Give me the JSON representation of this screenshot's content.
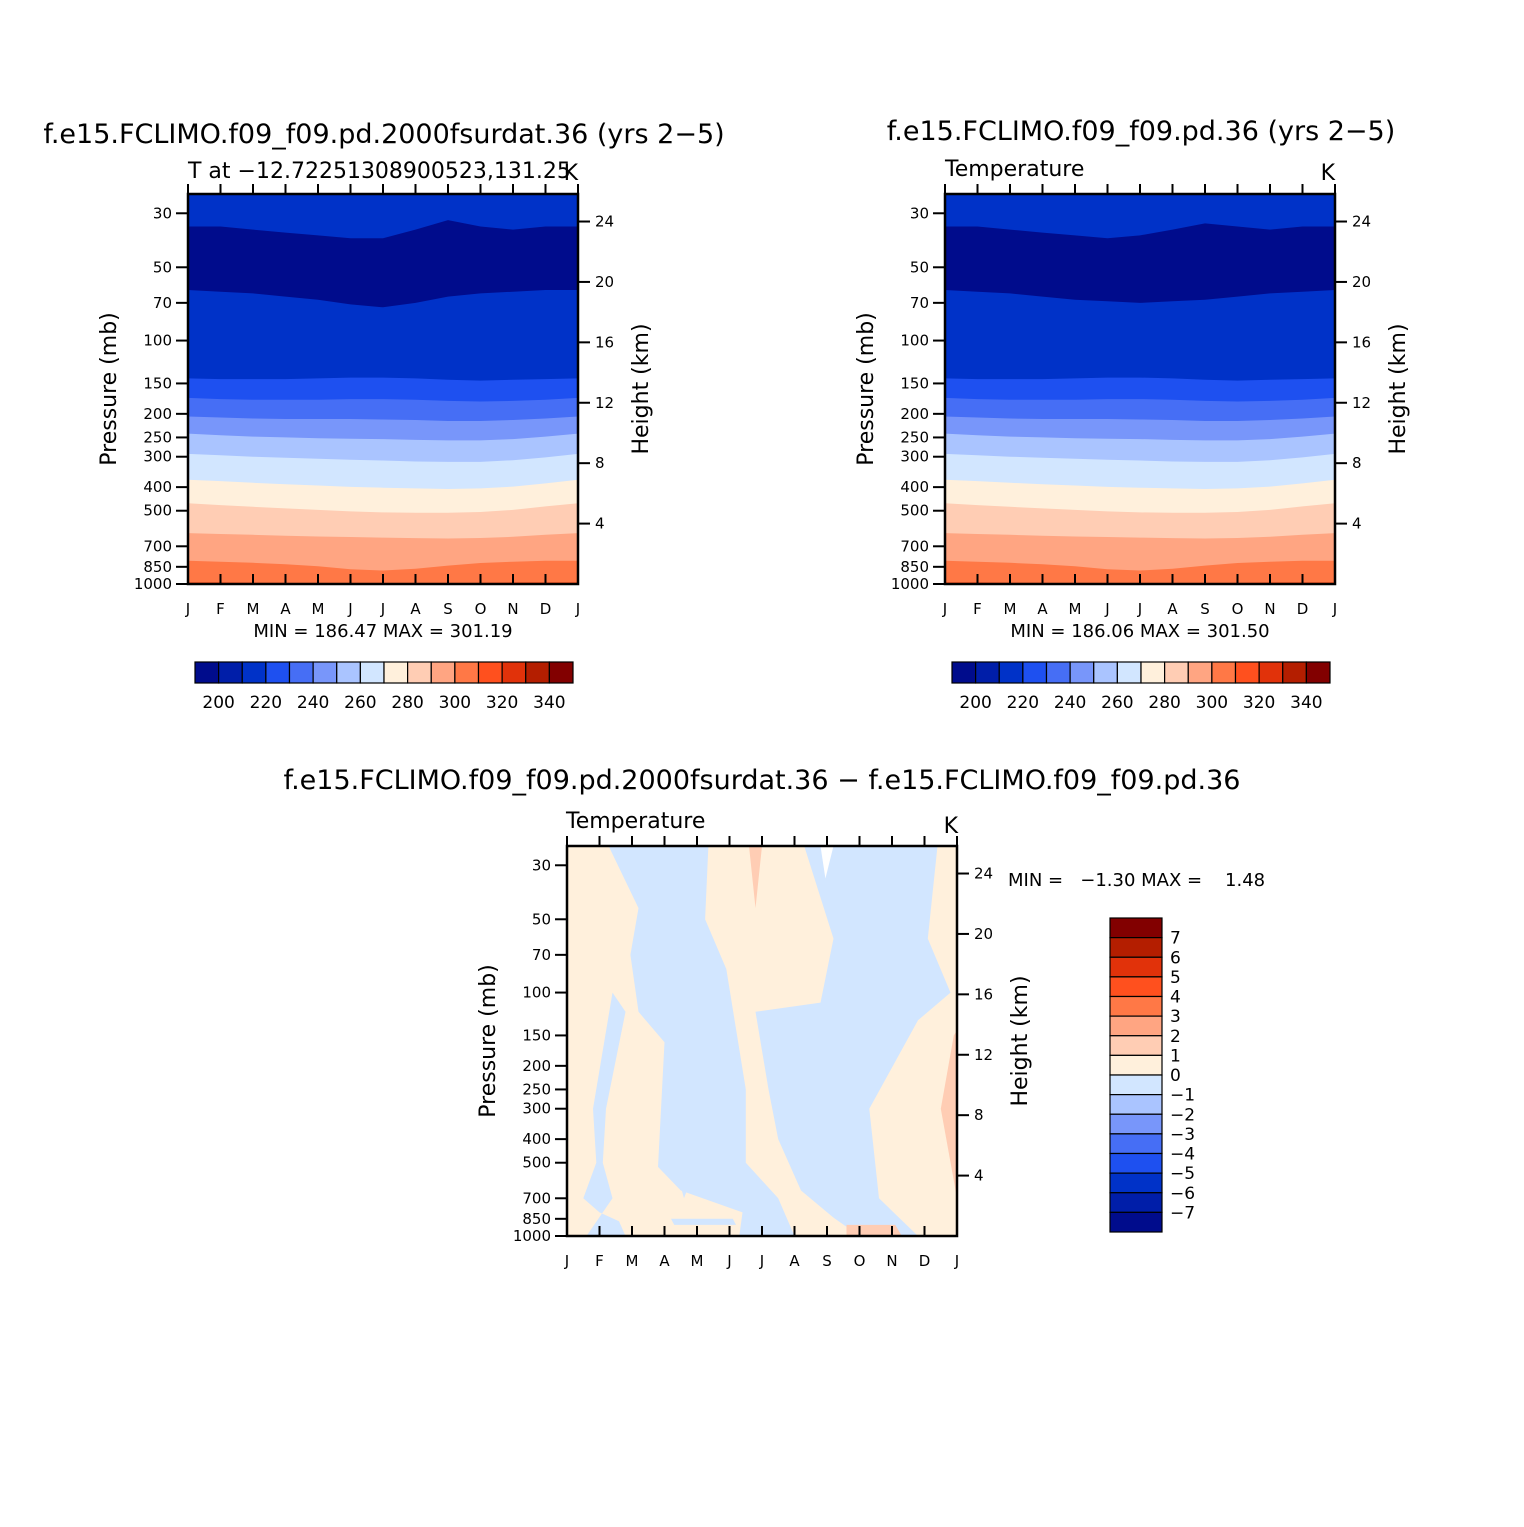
{
  "colors": {
    "temperature_scale": [
      "#000c8c",
      "#001ea9",
      "#0032c8",
      "#1e50f0",
      "#466ef5",
      "#7896fa",
      "#aac4ff",
      "#d2e6ff",
      "#fff0dc",
      "#ffcdb4",
      "#ffa582",
      "#ff7846",
      "#ff501e",
      "#e1320a",
      "#b41e00",
      "#820000"
    ],
    "difference_scale": [
      "#000c8c",
      "#001ea9",
      "#0032c8",
      "#1e50f0",
      "#466ef5",
      "#7896fa",
      "#aac4ff",
      "#d2e6ff",
      "#fff0dc",
      "#ffcdb4",
      "#ffa582",
      "#ff7846",
      "#ff501e",
      "#e1320a",
      "#b41e00",
      "#820000"
    ]
  },
  "chart_data": [
    {
      "type": "heatmap",
      "title": "f.e15.FCLIMO.f09_f09.pd.2000fsurdat.36 (yrs 2−5)",
      "subtitle_left": "T at −12.72251308900523,131.25",
      "subtitle_right": "K",
      "ylabel": "Pressure (mb)",
      "ylabel_right": "Height (km)",
      "x_ticks": [
        "J",
        "F",
        "M",
        "A",
        "M",
        "J",
        "J",
        "A",
        "S",
        "O",
        "N",
        "D",
        "J"
      ],
      "y_ticks": [
        "30",
        "50",
        "70",
        "100",
        "150",
        "200",
        "250",
        "300",
        "400",
        "500",
        "700",
        "850",
        "1000"
      ],
      "y2_ticks": [
        "4",
        "8",
        "12",
        "16",
        "20",
        "24"
      ],
      "y_scale": "log",
      "ylim": [
        1000,
        25
      ],
      "stats": "MIN = 186.47 MAX = 301.19",
      "colorbar": {
        "ticks": [
          "200",
          "220",
          "240",
          "260",
          "280",
          "300",
          "320",
          "340"
        ],
        "orientation": "horizontal"
      },
      "layers": [
        {
          "value": 200,
          "p": [
            62,
            63,
            64,
            66,
            68,
            71,
            73,
            70,
            66,
            64,
            63,
            62,
            62
          ]
        },
        {
          "value": 210,
          "p": [
            143,
            144,
            144,
            144,
            143,
            142,
            142,
            143,
            145,
            146,
            145,
            144,
            143
          ]
        },
        {
          "value": 220,
          "p": [
            172,
            174,
            175,
            175,
            175,
            174,
            174,
            175,
            177,
            178,
            177,
            175,
            172
          ]
        },
        {
          "value": 230,
          "p": [
            205,
            207,
            209,
            210,
            210,
            210,
            211,
            212,
            214,
            214,
            212,
            209,
            205
          ]
        },
        {
          "value": 240,
          "p": [
            241,
            245,
            248,
            250,
            252,
            253,
            254,
            256,
            257,
            257,
            254,
            248,
            241
          ]
        },
        {
          "value": 250,
          "p": [
            292,
            296,
            300,
            303,
            306,
            309,
            311,
            314,
            315,
            315,
            310,
            302,
            292
          ]
        },
        {
          "value": 260,
          "p": [
            373,
            378,
            384,
            389,
            394,
            399,
            402,
            405,
            407,
            405,
            398,
            386,
            373
          ]
        },
        {
          "value": 270,
          "p": [
            466,
            474,
            482,
            489,
            496,
            503,
            508,
            510,
            510,
            506,
            496,
            480,
            466
          ]
        },
        {
          "value": 280,
          "p": [
            618,
            623,
            628,
            633,
            638,
            641,
            645,
            648,
            650,
            647,
            640,
            628,
            618
          ]
        },
        {
          "value": 290,
          "p": [
            803,
            810,
            818,
            830,
            845,
            870,
            880,
            865,
            840,
            820,
            810,
            803,
            803
          ]
        },
        {
          "value": 300,
          "p": [
            985,
            985,
            988,
            990,
            995,
            1000,
            1000,
            1000,
            995,
            990,
            985,
            985,
            985
          ]
        }
      ],
      "upper_layers": [
        {
          "value": 190,
          "p": [
            34,
            34,
            35,
            36,
            37,
            38,
            38,
            35,
            32,
            34,
            35,
            34,
            34
          ]
        }
      ]
    },
    {
      "type": "heatmap",
      "title": "f.e15.FCLIMO.f09_f09.pd.36 (yrs 2−5)",
      "subtitle_left": "Temperature",
      "subtitle_right": "K",
      "ylabel": "Pressure (mb)",
      "ylabel_right": "Height (km)",
      "x_ticks": [
        "J",
        "F",
        "M",
        "A",
        "M",
        "J",
        "J",
        "A",
        "S",
        "O",
        "N",
        "D",
        "J"
      ],
      "y_ticks": [
        "30",
        "50",
        "70",
        "100",
        "150",
        "200",
        "250",
        "300",
        "400",
        "500",
        "700",
        "850",
        "1000"
      ],
      "y2_ticks": [
        "4",
        "8",
        "12",
        "16",
        "20",
        "24"
      ],
      "y_scale": "log",
      "ylim": [
        1000,
        25
      ],
      "stats": "MIN = 186.06 MAX = 301.50",
      "colorbar": {
        "ticks": [
          "200",
          "220",
          "240",
          "260",
          "280",
          "300",
          "320",
          "340"
        ],
        "orientation": "horizontal"
      },
      "layers": [
        {
          "value": 200,
          "p": [
            62,
            63,
            64,
            66,
            68,
            69,
            70,
            69,
            68,
            66,
            64,
            63,
            62
          ]
        },
        {
          "value": 210,
          "p": [
            143,
            144,
            144,
            144,
            143,
            142,
            142,
            143,
            145,
            146,
            145,
            144,
            143
          ]
        },
        {
          "value": 220,
          "p": [
            172,
            174,
            175,
            175,
            175,
            174,
            174,
            175,
            177,
            178,
            177,
            175,
            172
          ]
        },
        {
          "value": 230,
          "p": [
            205,
            207,
            209,
            210,
            210,
            210,
            211,
            212,
            214,
            214,
            212,
            209,
            205
          ]
        },
        {
          "value": 240,
          "p": [
            241,
            245,
            248,
            250,
            252,
            253,
            254,
            256,
            257,
            257,
            254,
            248,
            241
          ]
        },
        {
          "value": 250,
          "p": [
            292,
            296,
            300,
            303,
            306,
            309,
            311,
            314,
            315,
            315,
            310,
            302,
            292
          ]
        },
        {
          "value": 260,
          "p": [
            373,
            378,
            384,
            389,
            394,
            399,
            402,
            405,
            407,
            405,
            398,
            386,
            373
          ]
        },
        {
          "value": 270,
          "p": [
            466,
            474,
            482,
            489,
            496,
            503,
            508,
            510,
            510,
            506,
            496,
            480,
            466
          ]
        },
        {
          "value": 280,
          "p": [
            618,
            623,
            628,
            633,
            638,
            641,
            645,
            648,
            650,
            647,
            640,
            628,
            618
          ]
        },
        {
          "value": 290,
          "p": [
            803,
            810,
            818,
            830,
            845,
            870,
            880,
            865,
            840,
            820,
            810,
            803,
            803
          ]
        },
        {
          "value": 300,
          "p": [
            985,
            985,
            988,
            990,
            995,
            1000,
            1000,
            1000,
            995,
            990,
            985,
            985,
            985
          ]
        }
      ],
      "upper_layers": [
        {
          "value": 190,
          "p": [
            34,
            34,
            35,
            36,
            37,
            38,
            37,
            35,
            33,
            34,
            35,
            34,
            34
          ]
        }
      ]
    },
    {
      "type": "heatmap",
      "title": "f.e15.FCLIMO.f09_f09.pd.2000fsurdat.36 − f.e15.FCLIMO.f09_f09.pd.36",
      "subtitle_left": "Temperature",
      "subtitle_right": "K",
      "ylabel": "Pressure (mb)",
      "ylabel_right": "Height (km)",
      "x_ticks": [
        "J",
        "F",
        "M",
        "A",
        "M",
        "J",
        "J",
        "A",
        "S",
        "O",
        "N",
        "D",
        "J"
      ],
      "y_ticks": [
        "30",
        "50",
        "70",
        "100",
        "150",
        "200",
        "250",
        "300",
        "400",
        "500",
        "700",
        "850",
        "1000"
      ],
      "y2_ticks": [
        "4",
        "8",
        "12",
        "16",
        "20",
        "24"
      ],
      "y_scale": "log",
      "ylim": [
        1000,
        25
      ],
      "stats": "MIN =   −1.30 MAX =    1.48",
      "colorbar": {
        "ticks": [
          "7",
          "6",
          "5",
          "4",
          "3",
          "2",
          "1",
          "0",
          "−1",
          "−2",
          "−3",
          "−4",
          "−5",
          "−6",
          "−7"
        ],
        "orientation": "vertical"
      },
      "difference_bands": [
        {
          "value": -0.5,
          "regions": [
            [
              [
                1.28,
                25
              ],
              [
                4.35,
                25
              ],
              [
                4.25,
                50
              ],
              [
                4.9,
                80
              ],
              [
                5.5,
                250
              ],
              [
                5.5,
                500
              ],
              [
                6.5,
                700
              ],
              [
                7.0,
                1000
              ],
              [
                5.3,
                1000
              ],
              [
                5.4,
                800
              ],
              [
                3.5,
                650
              ],
              [
                2.8,
                520
              ],
              [
                3.0,
                160
              ],
              [
                2.2,
                120
              ],
              [
                1.95,
                70
              ],
              [
                2.2,
                45
              ],
              [
                1.28,
                25
              ]
            ],
            [
              [
                7.3,
                25
              ],
              [
                11.4,
                25
              ],
              [
                11.1,
                60
              ],
              [
                11.8,
                100
              ],
              [
                10.8,
                130
              ],
              [
                9.3,
                300
              ],
              [
                9.6,
                700
              ],
              [
                10.8,
                1000
              ],
              [
                9.0,
                1000
              ],
              [
                8.2,
                840
              ],
              [
                7.2,
                650
              ],
              [
                6.5,
                400
              ],
              [
                6.2,
                250
              ],
              [
                5.8,
                120
              ],
              [
                7.8,
                110
              ],
              [
                8.2,
                60
              ],
              [
                7.3,
                25
              ]
            ],
            [
              [
                0.6,
                1000
              ],
              [
                1.8,
                1000
              ],
              [
                1.6,
                870
              ],
              [
                1.0,
                800
              ],
              [
                0.5,
                700
              ],
              [
                0.9,
                500
              ],
              [
                0.8,
                300
              ],
              [
                1.4,
                100
              ],
              [
                1.8,
                120
              ],
              [
                1.2,
                300
              ],
              [
                1.1,
                500
              ],
              [
                1.4,
                700
              ],
              [
                0.6,
                1000
              ]
            ],
            [
              [
                3.2,
                850
              ],
              [
                5.1,
                850
              ],
              [
                5.2,
                900
              ],
              [
                3.3,
                900
              ],
              [
                3.2,
                850
              ]
            ],
            [
              [
                3.4,
                180
              ],
              [
                3.8,
                250
              ],
              [
                4.0,
                500
              ],
              [
                3.6,
                700
              ],
              [
                3.3,
                500
              ],
              [
                3.4,
                180
              ]
            ]
          ]
        },
        {
          "value": 0.5,
          "regions": [
            [
              [
                5.6,
                25
              ],
              [
                6.0,
                25
              ],
              [
                5.8,
                45
              ],
              [
                5.6,
                25
              ]
            ],
            [
              [
                12.8,
                100
              ],
              [
                11.9,
                150
              ],
              [
                11.5,
                300
              ],
              [
                12.0,
                700
              ],
              [
                12.5,
                1000
              ],
              [
                13.0,
                1000
              ],
              [
                13.0,
                100
              ],
              [
                12.8,
                100
              ]
            ],
            [
              [
                8.6,
                900
              ],
              [
                8.6,
                1000
              ],
              [
                10.3,
                1000
              ],
              [
                10.1,
                900
              ],
              [
                8.6,
                900
              ]
            ]
          ]
        }
      ]
    }
  ]
}
